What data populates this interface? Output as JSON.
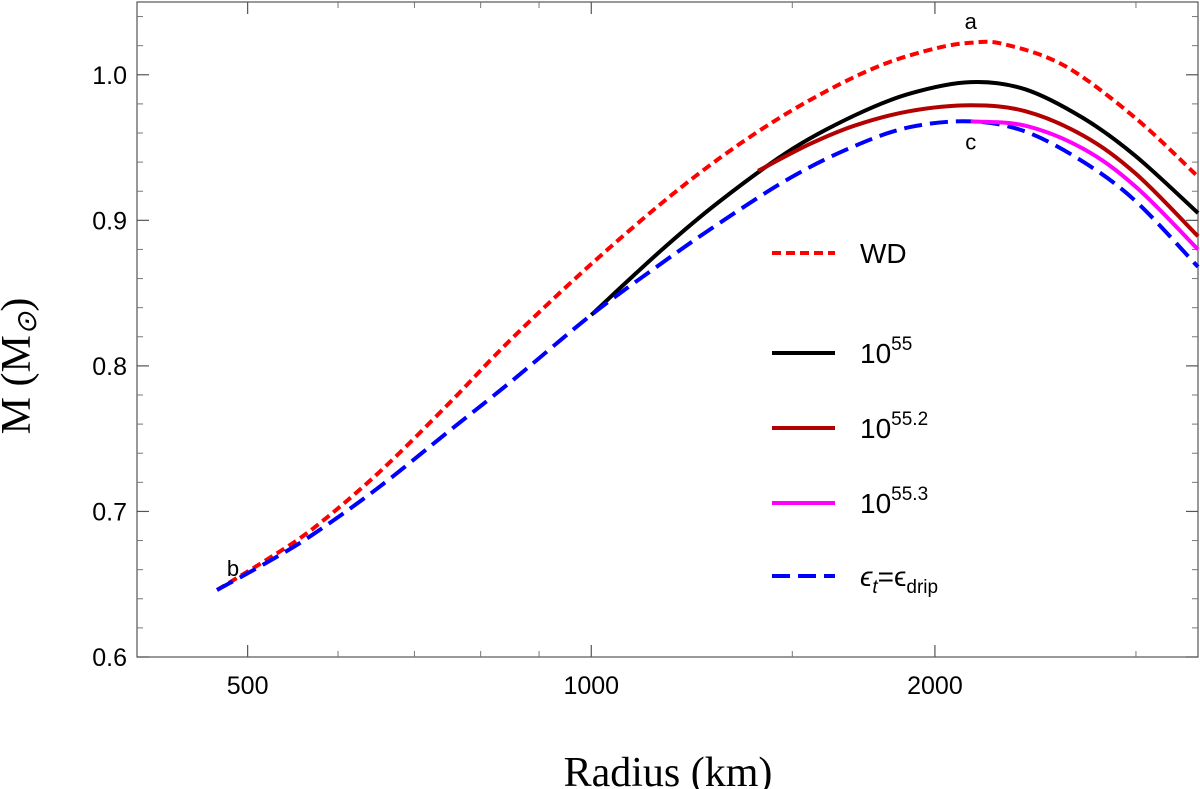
{
  "chart_data": {
    "type": "line",
    "title": "",
    "xlabel": "Radius (km)",
    "ylabel": "M (M",
    "ylabel_sub": "⊙",
    "ylabel_close": ")",
    "x_scale": "log",
    "xlim": [
      400,
      3400
    ],
    "ylim": [
      0.6,
      1.05
    ],
    "x_ticks": [
      500,
      1000,
      2000
    ],
    "x_tick_labels": [
      "500",
      "1000",
      "2000"
    ],
    "y_ticks": [
      0.6,
      0.7,
      0.8,
      0.9,
      1.0
    ],
    "y_tick_labels": [
      "0.6",
      "0.7",
      "0.8",
      "0.9",
      "1.0"
    ],
    "grid": false,
    "legend_position": "center-right",
    "series": [
      {
        "name": "WD",
        "legend_base": "WD",
        "legend_sup": "",
        "color": "#ff0000",
        "style": "dashed-short",
        "x": [
          470,
          520,
          570,
          650,
          750,
          850,
          1000,
          1200,
          1400,
          1600,
          1800,
          2000,
          2150,
          2300,
          2600,
          3000,
          3400
        ],
        "y": [
          0.646,
          0.667,
          0.688,
          0.726,
          0.774,
          0.818,
          0.87,
          0.923,
          0.961,
          0.988,
          1.007,
          1.018,
          1.022,
          1.021,
          1.006,
          0.97,
          0.93
        ]
      },
      {
        "name": "10^55",
        "legend_base": "10",
        "legend_sup": "55",
        "color": "#000000",
        "style": "solid",
        "x": [
          1000,
          1150,
          1300,
          1500,
          1700,
          1900,
          2150,
          2400,
          2700,
          3000,
          3400
        ],
        "y": [
          0.835,
          0.879,
          0.914,
          0.949,
          0.972,
          0.987,
          0.995,
          0.99,
          0.97,
          0.944,
          0.905
        ]
      },
      {
        "name": "10^55.2",
        "legend_base": "10",
        "legend_sup": "55.2",
        "color": "#b30000",
        "style": "solid",
        "x": [
          1400,
          1550,
          1700,
          1900,
          2150,
          2400,
          2700,
          3000,
          3400
        ],
        "y": [
          0.934,
          0.952,
          0.965,
          0.975,
          0.979,
          0.975,
          0.958,
          0.932,
          0.889
        ]
      },
      {
        "name": "10^55.3",
        "legend_base": " 10",
        "legend_sup": "55.3",
        "color": "#ff00ff",
        "style": "solid",
        "x": [
          2150,
          2400,
          2700,
          3000,
          3400
        ],
        "y": [
          0.968,
          0.965,
          0.949,
          0.923,
          0.88
        ]
      },
      {
        "name": "ϵt=ϵdrip",
        "legend_base": "ϵ",
        "legend_sub1": "t",
        "legend_mid": "=ϵ",
        "legend_sub2": "drip",
        "color": "#0000ff",
        "style": "dashed-long",
        "x": [
          470,
          520,
          570,
          650,
          750,
          850,
          1000,
          1150,
          1300,
          1500,
          1700,
          1900,
          2150,
          2400,
          2700,
          3000,
          3400
        ],
        "y": [
          0.646,
          0.665,
          0.684,
          0.716,
          0.755,
          0.789,
          0.835,
          0.87,
          0.899,
          0.93,
          0.951,
          0.964,
          0.968,
          0.961,
          0.94,
          0.913,
          0.868
        ]
      }
    ],
    "annotations": [
      {
        "text": "a",
        "x": 2150,
        "y": 1.022,
        "pos": "above"
      },
      {
        "text": "b",
        "x": 470,
        "y": 0.646,
        "pos": "above-right"
      },
      {
        "text": "c",
        "x": 2150,
        "y": 0.968,
        "pos": "below"
      }
    ]
  }
}
